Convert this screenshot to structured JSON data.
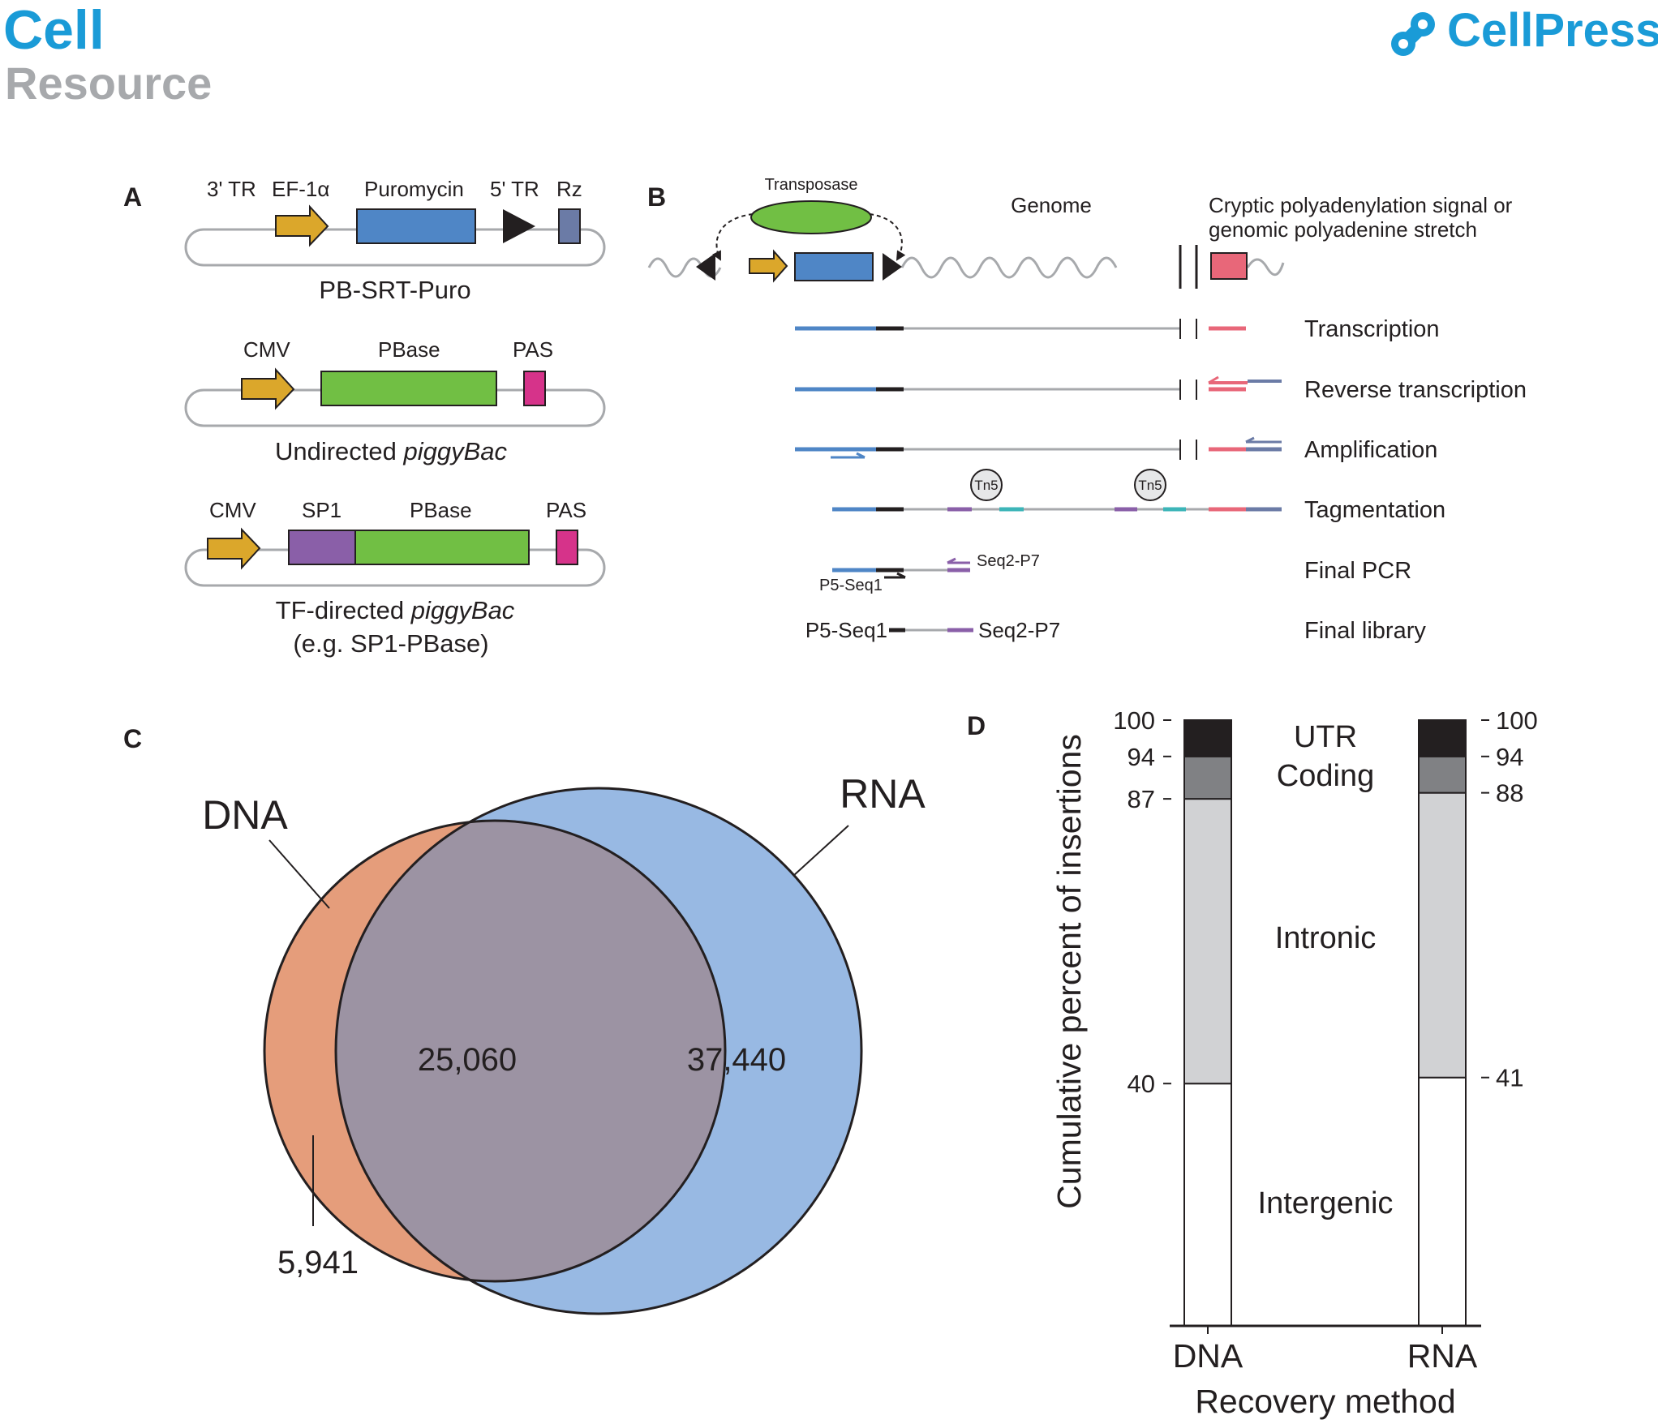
{
  "header": {
    "journal": "Cell",
    "section": "Resource",
    "publisher": "CellPress"
  },
  "panel_a": {
    "letter": "A",
    "constructs": [
      {
        "name": "PB-SRT-Puro",
        "elements": [
          "3' TR",
          "EF-1α",
          "Puromycin",
          "5' TR",
          "Rz"
        ]
      },
      {
        "name_plain": "Undirected ",
        "name_italic": "piggyBac",
        "elements": [
          "CMV",
          "PBase",
          "PAS"
        ]
      },
      {
        "name_plain": "TF-directed ",
        "name_italic": "piggyBac",
        "name_line2": "(e.g. SP1-PBase)",
        "elements": [
          "CMV",
          "SP1",
          "PBase",
          "PAS"
        ]
      }
    ]
  },
  "panel_b": {
    "letter": "B",
    "transposase": "Transposase",
    "genome": "Genome",
    "signal_line1": "Cryptic polyadenylation signal or",
    "signal_line2": "genomic polyadenine stretch",
    "steps": [
      "Transcription",
      "Reverse transcription",
      "Amplification",
      "Tagmentation",
      "Final PCR",
      "Final library"
    ],
    "tn5": "Tn5",
    "seq2_p7": "Seq2-P7",
    "p5_seq1": "P5-Seq1"
  },
  "panel_c": {
    "letter": "C",
    "dna_label": "DNA",
    "rna_label": "RNA",
    "overlap": "25,060",
    "rna_only": "37,440",
    "dna_only": "5,941"
  },
  "panel_d": {
    "letter": "D",
    "chart_data": {
      "type": "bar",
      "stacked": true,
      "categories": [
        "DNA",
        "RNA"
      ],
      "xlabel": "Recovery method",
      "ylabel": "Cumulative percent of insertions",
      "ylim": [
        0,
        100
      ],
      "series": [
        {
          "name": "Intergenic",
          "values": [
            40,
            41
          ],
          "color": "#ffffff"
        },
        {
          "name": "Intronic",
          "values": [
            47,
            47
          ],
          "color": "#d1d2d4"
        },
        {
          "name": "Coding",
          "values": [
            7,
            6
          ],
          "color": "#808184"
        },
        {
          "name": "UTR",
          "values": [
            6,
            6
          ],
          "color": "#231f20"
        }
      ],
      "left_ticks": [
        "100",
        "94",
        "87",
        "40"
      ],
      "left_tick_values": [
        100,
        94,
        87,
        40
      ],
      "right_ticks": [
        "100",
        "94",
        "88",
        "41"
      ],
      "right_tick_values": [
        100,
        94,
        88,
        41
      ]
    }
  },
  "colors": {
    "blue": "#4f86c6",
    "yellow": "#dba72b",
    "green": "#71bf44",
    "purple": "#8a5fa8",
    "magenta": "#d6338a",
    "slate": "#6b7ba6",
    "pink": "#e86779",
    "teal": "#3cb5b8",
    "venn_dna": "#e59d7b",
    "venn_rna": "#98b9e3",
    "venn_overlap": "#9c93a3"
  }
}
